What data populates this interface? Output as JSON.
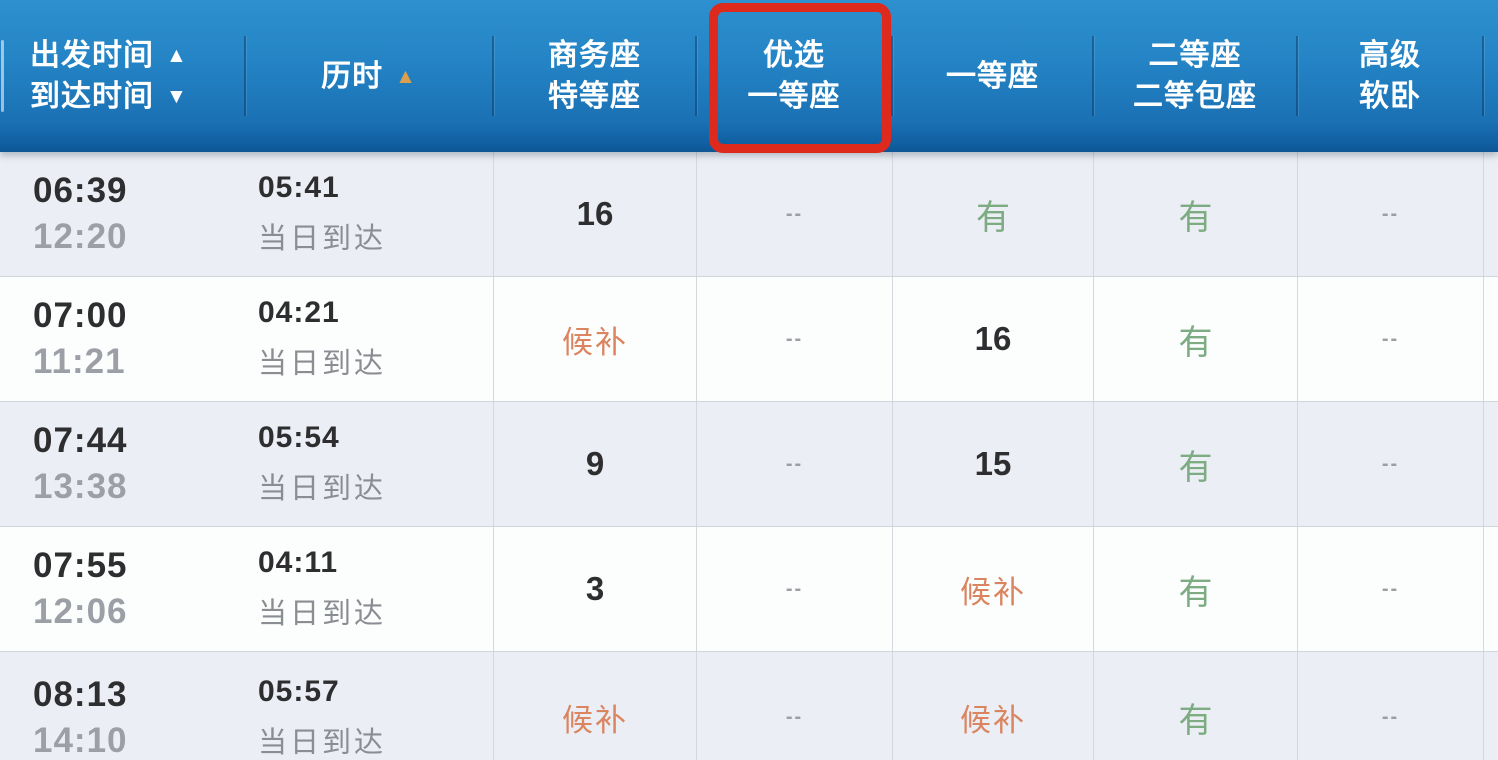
{
  "header": {
    "time_col": {
      "depart_label": "出发时间",
      "arrive_label": "到达时间"
    },
    "duration_label": "历时",
    "business_col": {
      "line1": "商务座",
      "line2": "特等座"
    },
    "premium_first_col": {
      "line1": "优选",
      "line2": "一等座"
    },
    "first_label": "一等座",
    "second_col": {
      "line1": "二等座",
      "line2": "二等包座"
    },
    "soft_sleeper_col": {
      "line1": "高级",
      "line2": "软卧"
    }
  },
  "icons": {
    "sort_asc": "▲",
    "sort_desc": "▼"
  },
  "colors": {
    "header_blue_top": "#2e90cf",
    "header_blue_bottom": "#0e5695",
    "highlight_red_box": "#dd2a1c",
    "duration_sort_arrow_orange": "#dc9f4e",
    "available_green": "#7dab82",
    "waitlist_orange": "#db8560",
    "unavailable_gray": "#9b9ea3",
    "depart_time_text": "#2e2e30",
    "arrive_time_text": "#9ca0a6",
    "row_alt_bg": "#ebeef4",
    "row_white_bg": "#fcfdfd"
  },
  "rows": [
    {
      "depart": "06:39",
      "arrive": "12:20",
      "duration": "05:41",
      "note": "当日到达",
      "seats": {
        "business": {
          "text": "16",
          "type": "count"
        },
        "premium_first": {
          "text": "--",
          "type": "none"
        },
        "first": {
          "text": "有",
          "type": "available"
        },
        "second": {
          "text": "有",
          "type": "available"
        },
        "soft_sleeper": {
          "text": "--",
          "type": "none"
        }
      }
    },
    {
      "depart": "07:00",
      "arrive": "11:21",
      "duration": "04:21",
      "note": "当日到达",
      "seats": {
        "business": {
          "text": "候补",
          "type": "waitlist"
        },
        "premium_first": {
          "text": "--",
          "type": "none"
        },
        "first": {
          "text": "16",
          "type": "count"
        },
        "second": {
          "text": "有",
          "type": "available"
        },
        "soft_sleeper": {
          "text": "--",
          "type": "none"
        }
      }
    },
    {
      "depart": "07:44",
      "arrive": "13:38",
      "duration": "05:54",
      "note": "当日到达",
      "seats": {
        "business": {
          "text": "9",
          "type": "count"
        },
        "premium_first": {
          "text": "--",
          "type": "none"
        },
        "first": {
          "text": "15",
          "type": "count"
        },
        "second": {
          "text": "有",
          "type": "available"
        },
        "soft_sleeper": {
          "text": "--",
          "type": "none"
        }
      }
    },
    {
      "depart": "07:55",
      "arrive": "12:06",
      "duration": "04:11",
      "note": "当日到达",
      "seats": {
        "business": {
          "text": "3",
          "type": "count"
        },
        "premium_first": {
          "text": "--",
          "type": "none"
        },
        "first": {
          "text": "候补",
          "type": "waitlist"
        },
        "second": {
          "text": "有",
          "type": "available"
        },
        "soft_sleeper": {
          "text": "--",
          "type": "none"
        }
      }
    },
    {
      "depart": "08:13",
      "arrive": "14:10",
      "duration": "05:57",
      "note": "当日到达",
      "seats": {
        "business": {
          "text": "候补",
          "type": "waitlist"
        },
        "premium_first": {
          "text": "--",
          "type": "none"
        },
        "first": {
          "text": "候补",
          "type": "waitlist"
        },
        "second": {
          "text": "有",
          "type": "available"
        },
        "soft_sleeper": {
          "text": "--",
          "type": "none"
        }
      }
    }
  ]
}
